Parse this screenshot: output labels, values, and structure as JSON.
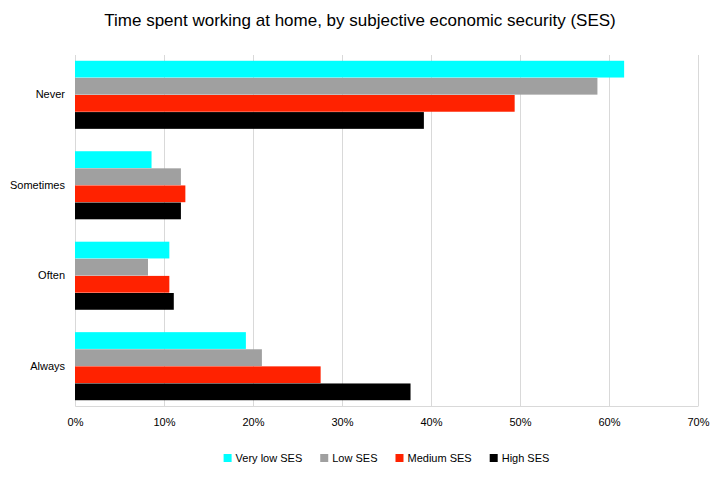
{
  "chart_data": {
    "type": "bar",
    "orientation": "horizontal",
    "title": "Time spent working at home, by subjective economic security (SES)",
    "categories": [
      "Never",
      "Sometimes",
      "Often",
      "Always"
    ],
    "series": [
      {
        "name": "Very low SES",
        "color": "#00ffff",
        "values": [
          61.7,
          8.6,
          10.6,
          19.2
        ]
      },
      {
        "name": "Low SES",
        "color": "#a0a0a0",
        "values": [
          58.7,
          11.9,
          8.2,
          21.0
        ]
      },
      {
        "name": "Medium SES",
        "color": "#ff2200",
        "values": [
          49.4,
          12.4,
          10.6,
          27.6
        ]
      },
      {
        "name": "High SES",
        "color": "#000000",
        "values": [
          39.2,
          11.9,
          11.1,
          37.7
        ]
      }
    ],
    "xlim": [
      0,
      70
    ],
    "xticks": [
      {
        "value": 0,
        "label": "0%"
      },
      {
        "value": 10,
        "label": "10%"
      },
      {
        "value": 20,
        "label": "20%"
      },
      {
        "value": 30,
        "label": "30%"
      },
      {
        "value": 40,
        "label": "40%"
      },
      {
        "value": 50,
        "label": "50%"
      },
      {
        "value": 60,
        "label": "60%"
      },
      {
        "value": 70,
        "label": "70%"
      }
    ],
    "grid": true,
    "legend": "bottom"
  }
}
